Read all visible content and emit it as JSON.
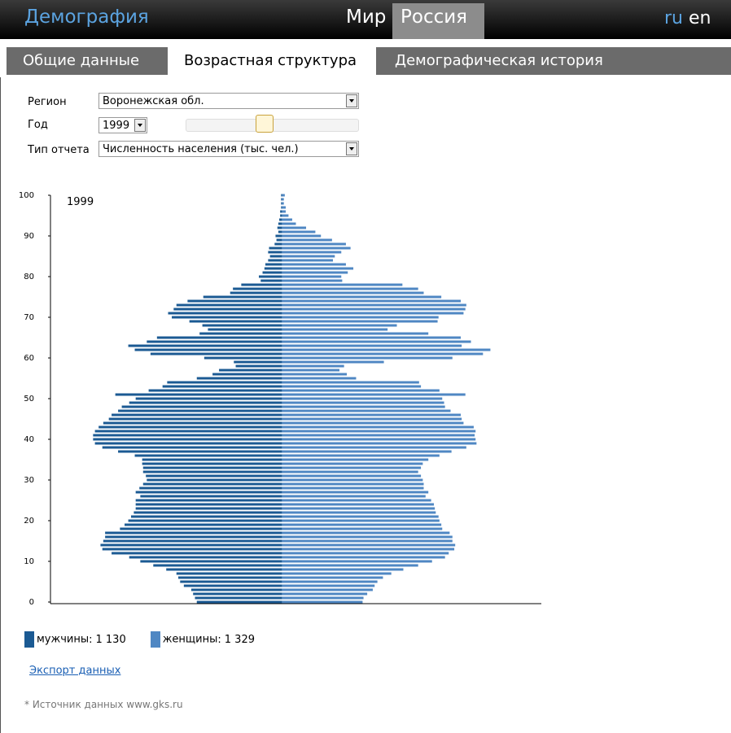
{
  "header": {
    "brand": "Демография",
    "regions": [
      "Мир",
      "Россия"
    ],
    "languages": [
      "ru",
      "en"
    ]
  },
  "tabs": [
    "Общие данные",
    "Возрастная структура",
    "Демографическая история"
  ],
  "form": {
    "region_label": "Регион",
    "region": "Воронежская обл.",
    "year_label": "Год",
    "year": "1999",
    "report_label": "Тип отчета",
    "report": "Численность населения (тыс. чел.)"
  },
  "chart_data": {
    "type": "pyramid",
    "title": "1999",
    "y": [
      0,
      1,
      2,
      3,
      4,
      5,
      6,
      7,
      8,
      9,
      10,
      11,
      12,
      13,
      14,
      15,
      16,
      17,
      18,
      19,
      20,
      21,
      22,
      23,
      24,
      25,
      26,
      27,
      28,
      29,
      30,
      31,
      32,
      33,
      34,
      35,
      36,
      37,
      38,
      39,
      40,
      41,
      42,
      43,
      44,
      45,
      46,
      47,
      48,
      49,
      50,
      51,
      52,
      53,
      54,
      55,
      56,
      57,
      58,
      59,
      60,
      61,
      62,
      63,
      64,
      65,
      66,
      67,
      68,
      69,
      70,
      71,
      72,
      73,
      74,
      75,
      76,
      77,
      78,
      79,
      80,
      81,
      82,
      83,
      84,
      85,
      86,
      87,
      88,
      89,
      90,
      91,
      92,
      93,
      94,
      95,
      96,
      97,
      98,
      99,
      100
    ],
    "ylim": [
      0,
      100
    ],
    "yticks": [
      0,
      10,
      20,
      30,
      40,
      50,
      60,
      70,
      80,
      90,
      100
    ],
    "xlim": [
      -25,
      28
    ],
    "series": [
      {
        "name": "мужчины",
        "side": "left",
        "color": "#1b5a93",
        "total": {
          "value": 1130,
          "label": "1 130"
        },
        "values": [
          9.2,
          9.4,
          9.6,
          9.8,
          10.6,
          11.0,
          11.2,
          11.4,
          12.5,
          13.9,
          15.3,
          16.5,
          18.4,
          19.4,
          19.6,
          19.3,
          19.1,
          19.1,
          17.5,
          17.0,
          16.6,
          16.3,
          16.0,
          15.8,
          15.8,
          15.8,
          15.3,
          15.8,
          15.4,
          15.0,
          14.6,
          14.7,
          15.0,
          15.0,
          15.1,
          15.1,
          15.9,
          17.7,
          19.4,
          20.2,
          20.4,
          20.4,
          20.2,
          19.8,
          19.3,
          18.7,
          18.4,
          17.7,
          17.3,
          16.5,
          15.8,
          18.0,
          14.4,
          12.9,
          12.4,
          9.2,
          7.5,
          6.8,
          5.0,
          5.2,
          8.4,
          14.2,
          15.9,
          16.6,
          14.6,
          13.5,
          8.9,
          8.0,
          8.6,
          10.0,
          11.9,
          12.3,
          11.7,
          11.4,
          10.2,
          8.5,
          5.6,
          5.3,
          4.4,
          2.3,
          2.5,
          2.1,
          1.9,
          1.8,
          1.5,
          1.3,
          1.5,
          1.4,
          0.8,
          0.6,
          0.7,
          0.4,
          0.5,
          0.4,
          0.3,
          0.2,
          0.2,
          0.1,
          0.1,
          0.1,
          0.1
        ]
      },
      {
        "name": "женщины",
        "side": "right",
        "color": "#4f87c3",
        "total": {
          "value": 1329,
          "label": "1 329"
        },
        "values": [
          8.7,
          8.8,
          9.2,
          9.8,
          10.0,
          10.3,
          10.9,
          11.8,
          13.1,
          14.7,
          16.2,
          17.6,
          18.0,
          18.6,
          18.7,
          18.4,
          18.4,
          18.1,
          17.3,
          17.2,
          17.0,
          16.9,
          16.6,
          16.5,
          16.4,
          16.1,
          15.5,
          15.8,
          15.3,
          15.3,
          15.2,
          15.0,
          14.7,
          15.0,
          15.2,
          15.8,
          17.0,
          18.3,
          19.9,
          21.0,
          20.9,
          20.8,
          20.9,
          20.7,
          19.6,
          19.4,
          19.3,
          18.2,
          17.6,
          17.5,
          17.3,
          19.8,
          17.0,
          15.0,
          14.8,
          8.0,
          7.0,
          6.2,
          6.7,
          11.0,
          18.4,
          21.7,
          22.5,
          19.4,
          20.4,
          19.3,
          15.8,
          11.4,
          12.4,
          16.8,
          16.9,
          19.6,
          19.8,
          19.9,
          19.3,
          17.2,
          15.3,
          14.7,
          13.0,
          6.5,
          6.4,
          7.1,
          7.7,
          6.9,
          5.5,
          5.7,
          6.4,
          7.4,
          6.9,
          5.4,
          4.2,
          3.6,
          2.6,
          1.5,
          1.1,
          0.7,
          0.4,
          0.4,
          0.2,
          0.2,
          0.3
        ]
      }
    ]
  },
  "export_link": "Экспорт данных",
  "source_note": "* Источник данных www.gks.ru"
}
